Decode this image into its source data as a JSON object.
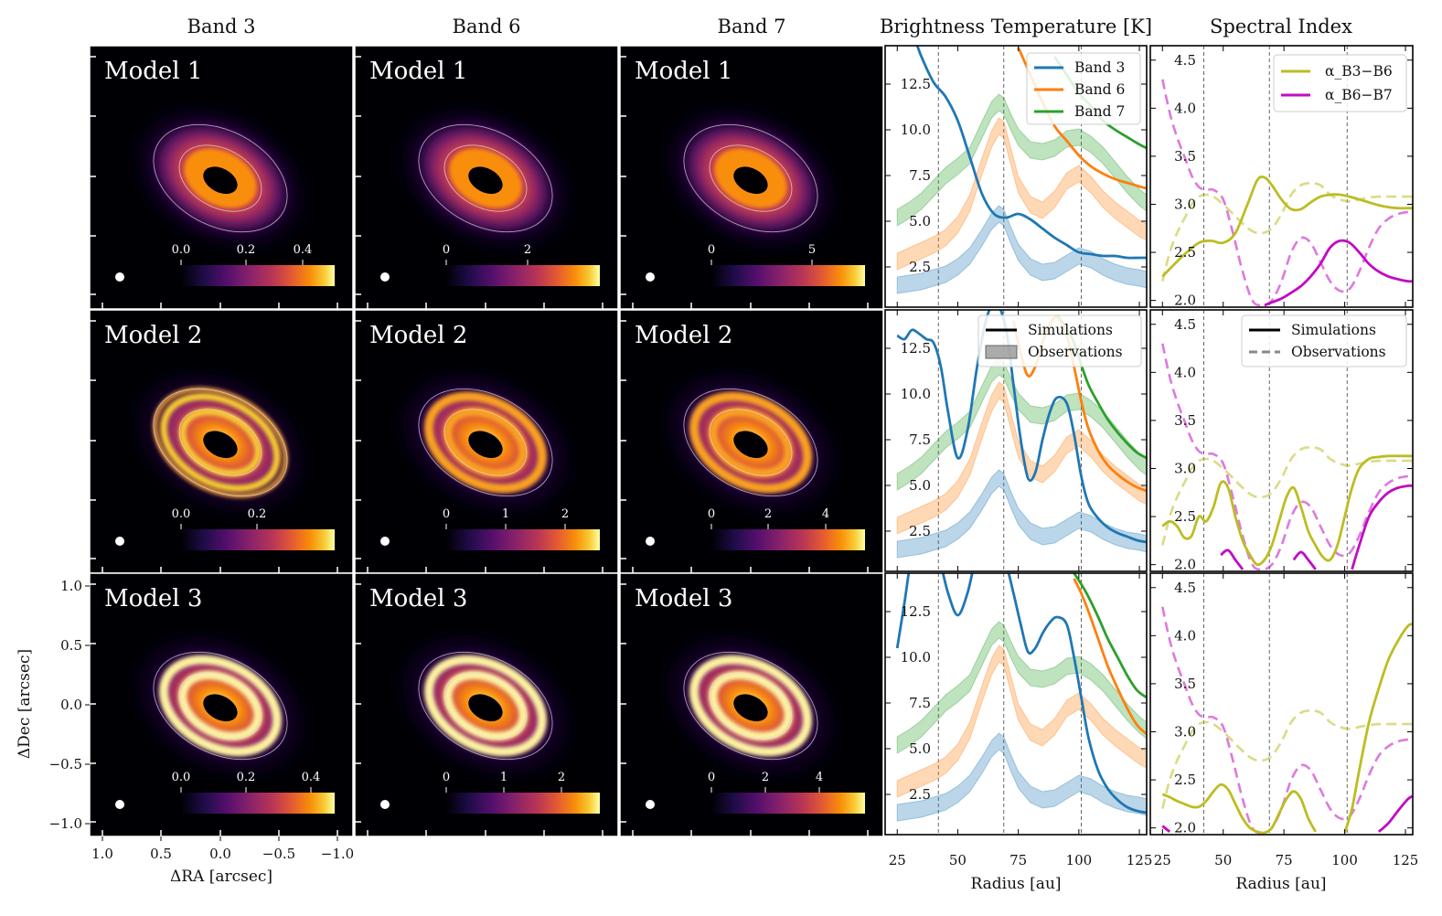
{
  "column_titles": [
    "Band 3",
    "Band 6",
    "Band 7",
    "Brightness Temperature [K]",
    "Spectral Index"
  ],
  "colors": {
    "band3": "#1f77b4",
    "band6": "#ff7f0e",
    "band7": "#2ca02c",
    "alpha36": "#bcbd22",
    "alpha67": "#c20bc2"
  },
  "image_panels": {
    "x_label": "ΔRA [arcsec]",
    "y_label": "ΔDec [arcsec]",
    "x_ticks": [
      "1.0",
      "0.5",
      "0.0",
      "−0.5",
      "−1.0"
    ],
    "y_ticks": [
      "1.0",
      "0.5",
      "0.0",
      "−0.5",
      "−1.0"
    ],
    "rows": [
      {
        "model": "Model 1",
        "cbar_ticks": [
          [
            "0.0",
            "0.2",
            "0.4"
          ],
          [
            "0",
            "2"
          ],
          [
            "0",
            "5"
          ]
        ]
      },
      {
        "model": "Model 2",
        "cbar_ticks": [
          [
            "0.0",
            "0.2"
          ],
          [
            "0",
            "1",
            "2"
          ],
          [
            "0",
            "2",
            "4"
          ]
        ]
      },
      {
        "model": "Model 3",
        "cbar_ticks": [
          [
            "0.0",
            "0.2",
            "0.4"
          ],
          [
            "0",
            "1",
            "2"
          ],
          [
            "0",
            "2",
            "4"
          ]
        ]
      }
    ]
  },
  "chart_data": [
    {
      "type": "line",
      "title": "Brightness Temperature [K]",
      "xlabel": "Radius [au]",
      "x_ticks": [
        "25",
        "50",
        "75",
        "100",
        "125"
      ],
      "y_ticks": [
        "2.5",
        "5.0",
        "7.5",
        "10.0",
        "12.5"
      ],
      "xlim": [
        20,
        128
      ],
      "ylim": [
        0.3,
        14.6
      ],
      "vlines": [
        42,
        69,
        101
      ],
      "legends": [
        {
          "row": 0,
          "entries": [
            "Band 3",
            "Band 6",
            "Band 7"
          ]
        },
        {
          "row": 1,
          "entries": [
            "Simulations",
            "Observations"
          ]
        }
      ],
      "observations": {
        "x": [
          25,
          30,
          35,
          40,
          45,
          50,
          55,
          60,
          64,
          67,
          69,
          72,
          75,
          80,
          85,
          90,
          95,
          100,
          105,
          110,
          115,
          120,
          125,
          128
        ],
        "band3": [
          1.5,
          1.6,
          1.7,
          1.9,
          2.1,
          2.5,
          3.1,
          4.1,
          5.0,
          5.4,
          5.2,
          4.2,
          3.3,
          2.5,
          2.2,
          2.3,
          2.7,
          3.1,
          2.9,
          2.5,
          2.2,
          2.0,
          1.9,
          1.8
        ],
        "band6": [
          2.8,
          3.1,
          3.4,
          3.7,
          4.1,
          4.8,
          6.0,
          8.0,
          9.5,
          10.2,
          10.0,
          8.5,
          7.0,
          5.9,
          5.6,
          6.2,
          7.2,
          7.6,
          7.0,
          6.2,
          5.6,
          5.1,
          4.6,
          4.4
        ],
        "band7": [
          5.2,
          5.6,
          6.1,
          6.8,
          7.5,
          8.0,
          8.6,
          10.0,
          11.1,
          11.5,
          11.3,
          10.4,
          9.6,
          8.9,
          8.8,
          9.0,
          9.5,
          9.6,
          9.2,
          8.6,
          7.8,
          7.0,
          6.3,
          6.0
        ]
      },
      "simulations": [
        {
          "model": "Model 1",
          "x": [
            25,
            30,
            35,
            40,
            45,
            50,
            55,
            60,
            65,
            70,
            75,
            80,
            85,
            90,
            95,
            100,
            105,
            110,
            115,
            120,
            125,
            128
          ],
          "band3": [
            18.5,
            16.0,
            14.0,
            12.6,
            11.8,
            10.5,
            8.5,
            6.5,
            5.4,
            5.2,
            5.4,
            5.1,
            4.6,
            4.1,
            3.7,
            3.3,
            3.2,
            3.1,
            3.1,
            3.0,
            3.0,
            3.0
          ],
          "band6": [
            null,
            null,
            null,
            null,
            null,
            null,
            null,
            null,
            null,
            null,
            14.5,
            13.0,
            11.5,
            10.2,
            9.4,
            8.6,
            8.0,
            7.6,
            7.3,
            7.1,
            6.9,
            6.8
          ],
          "band7": [
            null,
            null,
            null,
            null,
            null,
            null,
            null,
            null,
            null,
            null,
            null,
            null,
            null,
            14.0,
            13.0,
            12.0,
            11.3,
            10.5,
            10.0,
            9.6,
            9.2,
            9.0
          ]
        },
        {
          "model": "Model 2",
          "x": [
            25,
            28,
            31,
            34,
            37,
            40,
            43,
            46,
            50,
            54,
            58,
            62,
            66,
            70,
            73,
            76,
            79,
            82,
            85,
            88,
            91,
            95,
            98,
            101,
            104,
            108,
            112,
            116,
            120,
            124,
            128
          ],
          "band3": [
            13.2,
            13.0,
            13.5,
            13.3,
            13.0,
            12.8,
            11.5,
            9.0,
            6.5,
            8.0,
            11.5,
            14.2,
            15.0,
            13.5,
            10.5,
            7.5,
            5.4,
            5.7,
            7.5,
            9.0,
            9.8,
            9.5,
            7.8,
            5.5,
            4.0,
            3.2,
            2.7,
            2.4,
            2.2,
            2.0,
            1.9
          ],
          "band6": [
            null,
            null,
            null,
            null,
            null,
            null,
            null,
            null,
            null,
            null,
            null,
            null,
            null,
            null,
            14.0,
            12.2,
            11.0,
            11.5,
            12.8,
            13.8,
            14.2,
            13.2,
            11.5,
            9.6,
            8.1,
            6.9,
            6.1,
            5.6,
            5.2,
            4.9,
            4.7
          ],
          "band7": [
            null,
            null,
            null,
            null,
            null,
            null,
            null,
            null,
            null,
            null,
            null,
            null,
            null,
            null,
            null,
            null,
            null,
            null,
            null,
            null,
            14.3,
            13.6,
            12.8,
            11.6,
            10.5,
            9.5,
            8.6,
            7.9,
            7.3,
            6.8,
            6.5
          ]
        },
        {
          "model": "Model 3",
          "x": [
            25,
            28,
            31,
            34,
            37,
            40,
            43,
            46,
            50,
            54,
            58,
            62,
            66,
            70,
            73,
            76,
            79,
            82,
            85,
            88,
            91,
            95,
            98,
            101,
            104,
            108,
            112,
            116,
            120,
            124,
            128
          ],
          "band3": [
            10.5,
            13.0,
            15.5,
            17.0,
            17.5,
            16.5,
            15.0,
            13.5,
            12.3,
            13.5,
            16.0,
            17.5,
            16.5,
            15.0,
            13.5,
            11.8,
            10.3,
            10.5,
            11.3,
            11.9,
            12.2,
            11.8,
            10.0,
            7.8,
            5.6,
            3.8,
            2.8,
            2.2,
            1.8,
            1.6,
            1.5
          ],
          "band6": [
            null,
            null,
            null,
            null,
            null,
            null,
            null,
            null,
            null,
            null,
            null,
            null,
            null,
            null,
            null,
            null,
            null,
            null,
            null,
            null,
            null,
            null,
            14.3,
            13.5,
            12.5,
            11.0,
            9.5,
            8.3,
            7.2,
            6.3,
            5.8
          ],
          "band7": [
            null,
            null,
            null,
            null,
            null,
            null,
            null,
            null,
            null,
            null,
            null,
            null,
            null,
            null,
            null,
            null,
            null,
            null,
            null,
            null,
            null,
            null,
            14.6,
            14.0,
            13.3,
            12.2,
            11.0,
            10.0,
            9.0,
            8.2,
            7.8
          ]
        }
      ]
    },
    {
      "type": "line",
      "title": "Spectral Index",
      "xlabel": "Radius [au]",
      "x_ticks": [
        "25",
        "50",
        "75",
        "100",
        "125"
      ],
      "y_ticks": [
        "2.0",
        "2.5",
        "3.0",
        "3.5",
        "4.0",
        "4.5"
      ],
      "xlim": [
        20,
        128
      ],
      "ylim": [
        1.93,
        4.65
      ],
      "vlines": [
        42,
        69,
        101
      ],
      "legends": [
        {
          "row": 0,
          "entries": [
            "α_B3−B6",
            "α_B6−B7"
          ]
        },
        {
          "row": 1,
          "entries": [
            "Simulations",
            "Observations"
          ]
        }
      ],
      "observations": {
        "x": [
          25,
          28,
          31,
          34,
          37,
          40,
          43,
          46,
          50,
          54,
          58,
          62,
          66,
          70,
          74,
          78,
          82,
          86,
          90,
          94,
          98,
          102,
          106,
          110,
          114,
          118,
          122,
          126,
          128
        ],
        "alpha_b3_b6": [
          2.2,
          2.5,
          2.7,
          2.85,
          3.0,
          3.08,
          3.1,
          3.08,
          3.0,
          2.9,
          2.8,
          2.72,
          2.7,
          2.75,
          2.9,
          3.1,
          3.2,
          3.22,
          3.2,
          3.1,
          3.05,
          3.03,
          3.05,
          3.07,
          3.08,
          3.08,
          3.08,
          3.08,
          3.08
        ],
        "alpha_b6_b7": [
          4.3,
          3.95,
          3.7,
          3.5,
          3.3,
          3.18,
          3.15,
          3.15,
          3.05,
          2.7,
          2.3,
          2.0,
          1.95,
          2.0,
          2.2,
          2.5,
          2.65,
          2.6,
          2.4,
          2.2,
          2.1,
          2.12,
          2.3,
          2.55,
          2.75,
          2.85,
          2.9,
          2.92,
          2.92
        ]
      },
      "simulations": [
        {
          "model": "Model 1",
          "x": [
            25,
            30,
            35,
            40,
            45,
            50,
            55,
            60,
            64,
            67,
            70,
            74,
            78,
            82,
            86,
            90,
            94,
            98,
            102,
            106,
            110,
            114,
            118,
            122,
            126,
            128
          ],
          "alpha_b3_b6": [
            2.25,
            2.38,
            2.5,
            2.6,
            2.62,
            2.6,
            2.7,
            3.0,
            3.25,
            3.28,
            3.2,
            3.05,
            2.95,
            2.95,
            3.02,
            3.08,
            3.1,
            3.1,
            3.08,
            3.05,
            3.02,
            2.99,
            2.97,
            2.96,
            2.96,
            2.96
          ],
          "alpha_b6_b7": [
            null,
            null,
            null,
            null,
            null,
            null,
            null,
            null,
            null,
            1.95,
            1.98,
            2.02,
            2.08,
            2.15,
            2.25,
            2.38,
            2.55,
            2.62,
            2.6,
            2.5,
            2.38,
            2.3,
            2.25,
            2.22,
            2.2,
            2.2
          ]
        },
        {
          "model": "Model 2",
          "x": [
            25,
            28,
            31,
            34,
            37,
            40,
            43,
            46,
            49,
            52,
            55,
            58,
            61,
            64,
            67,
            70,
            73,
            76,
            79,
            82,
            85,
            88,
            91,
            94,
            97,
            100,
            103,
            106,
            110,
            114,
            118,
            122,
            126,
            128
          ],
          "alpha_b3_b6": [
            2.4,
            2.45,
            2.4,
            2.28,
            2.3,
            2.5,
            2.45,
            2.6,
            2.85,
            2.8,
            2.5,
            2.25,
            2.1,
            2.0,
            2.05,
            2.2,
            2.45,
            2.7,
            2.8,
            2.6,
            2.35,
            2.2,
            2.08,
            2.05,
            2.2,
            2.5,
            2.8,
            3.0,
            3.1,
            3.12,
            3.13,
            3.13,
            3.13,
            3.13
          ],
          "alpha_b6_b7": [
            null,
            null,
            null,
            null,
            null,
            null,
            null,
            null,
            2.1,
            2.15,
            2.05,
            1.95,
            null,
            null,
            null,
            null,
            null,
            null,
            2.05,
            2.13,
            2.05,
            1.95,
            null,
            null,
            null,
            null,
            1.95,
            2.2,
            2.5,
            2.65,
            2.75,
            2.8,
            2.82,
            2.82
          ]
        },
        {
          "model": "Model 3",
          "x": [
            25,
            28,
            31,
            34,
            37,
            40,
            43,
            46,
            49,
            52,
            55,
            58,
            61,
            64,
            67,
            70,
            73,
            76,
            79,
            82,
            85,
            88,
            91,
            94,
            97,
            100,
            103,
            106,
            110,
            114,
            118,
            122,
            126,
            128
          ],
          "alpha_b3_b6": [
            2.35,
            2.32,
            2.28,
            2.25,
            2.22,
            2.22,
            2.28,
            2.38,
            2.45,
            2.4,
            2.25,
            2.1,
            2.0,
            1.96,
            1.95,
            2.0,
            2.15,
            2.3,
            2.38,
            2.3,
            2.1,
            1.96,
            null,
            null,
            null,
            1.95,
            2.2,
            2.6,
            3.1,
            3.45,
            3.75,
            3.95,
            4.1,
            4.12
          ],
          "alpha_b6_b7": [
            2.02,
            1.96,
            null,
            null,
            null,
            null,
            null,
            null,
            null,
            null,
            null,
            null,
            null,
            null,
            null,
            null,
            null,
            null,
            null,
            null,
            null,
            null,
            null,
            null,
            null,
            null,
            null,
            null,
            null,
            1.96,
            2.05,
            2.18,
            2.3,
            2.33
          ]
        }
      ]
    }
  ]
}
